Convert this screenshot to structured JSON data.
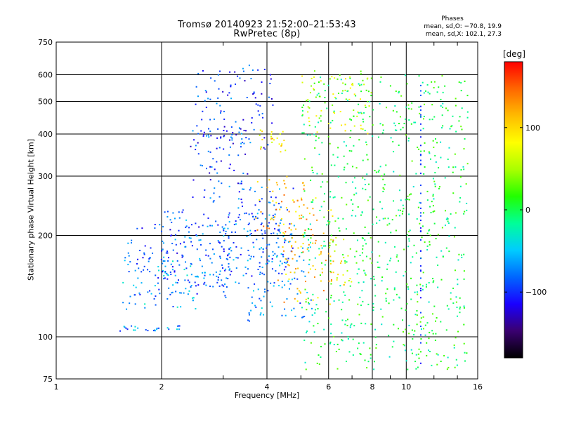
{
  "header": {
    "title": "Tromsø 20140923 21:52:00–21:53:43",
    "subtitle": "RwPretec (8p)"
  },
  "phases": {
    "heading": "Phases",
    "o_line": "mean, sd,O: −70.8, 19.9",
    "x_line": "mean, sd,X: 102.1, 27.3"
  },
  "colorbar": {
    "unit": "[deg]",
    "ticks": [
      {
        "value": 100,
        "label": "100"
      },
      {
        "value": 0,
        "label": "0"
      },
      {
        "value": -100,
        "label": "−100"
      }
    ],
    "range": [
      -180,
      180
    ],
    "colors": [
      "#000000",
      "#3a0070",
      "#1a00ff",
      "#0066ff",
      "#00ccff",
      "#00ff99",
      "#22ff00",
      "#aaff00",
      "#ffff00",
      "#ffbb00",
      "#ff6600",
      "#ff0000"
    ]
  },
  "chart_data": {
    "type": "scatter",
    "title": "Tromsø 20140923 21:52:00–21:53:43",
    "subtitle": "RwPretec (8p)",
    "xlabel": "Frequency [MHz]",
    "ylabel": "Stationary phase Virtual Height [km]",
    "xscale": "log",
    "yscale": "log",
    "xlim": [
      1,
      16
    ],
    "ylim": [
      75,
      750
    ],
    "xticks": [
      {
        "value": 1,
        "label": "1"
      },
      {
        "value": 2,
        "label": "2"
      },
      {
        "value": 4,
        "label": "4"
      },
      {
        "value": 6,
        "label": "6"
      },
      {
        "value": 8,
        "label": "8"
      },
      {
        "value": 10,
        "label": "10"
      },
      {
        "value": 16,
        "label": "16"
      }
    ],
    "yticks": [
      {
        "value": 75,
        "label": "75"
      },
      {
        "value": 100,
        "label": "100"
      },
      {
        "value": 200,
        "label": "200"
      },
      {
        "value": 300,
        "label": "300"
      },
      {
        "value": 400,
        "label": "400"
      },
      {
        "value": 500,
        "label": "500"
      },
      {
        "value": 600,
        "label": "600"
      },
      {
        "value": 750,
        "label": "750"
      }
    ],
    "grid": true,
    "color_by": "phase [deg]",
    "clusters": [
      {
        "desc": "low trace",
        "f": [
          1.5,
          2.3
        ],
        "h": [
          104,
          108
        ],
        "phase": -70
      },
      {
        "desc": "lower trace",
        "f": [
          1.55,
          2.6
        ],
        "h": [
          120,
          175
        ],
        "phase": -60
      },
      {
        "desc": "mid cloud",
        "f": [
          1.6,
          3.2
        ],
        "h": [
          130,
          220
        ],
        "phase": -90
      },
      {
        "desc": "curved traces",
        "f": [
          2.0,
          4.6
        ],
        "h": [
          140,
          240
        ],
        "phase": -80
      },
      {
        "desc": "upper cloud",
        "f": [
          2.4,
          3.6
        ],
        "h": [
          250,
          420
        ],
        "phase": -95
      },
      {
        "desc": "upper cloud 2",
        "f": [
          2.5,
          4.2
        ],
        "h": [
          360,
          640
        ],
        "phase": -95
      },
      {
        "desc": "mid-freq high",
        "f": [
          3.0,
          4.8
        ],
        "h": [
          150,
          280
        ],
        "phase": -85
      },
      {
        "desc": "mixed",
        "f": [
          3.5,
          5.4
        ],
        "h": [
          110,
          200
        ],
        "phase": -70
      },
      {
        "desc": "x-trace warm",
        "f": [
          3.7,
          5.2
        ],
        "h": [
          200,
          300
        ],
        "phase": 120
      },
      {
        "desc": "x-trace 2",
        "f": [
          4.3,
          6.2
        ],
        "h": [
          125,
          260
        ],
        "phase": 110
      },
      {
        "desc": "x-yellow",
        "f": [
          3.8,
          4.6
        ],
        "h": [
          350,
          420
        ],
        "phase": 90
      },
      {
        "desc": "sparse high",
        "f": [
          5.0,
          8.0
        ],
        "h": [
          400,
          620
        ],
        "phase": 60
      },
      {
        "desc": "sparse",
        "f": [
          6.0,
          7.0
        ],
        "h": [
          140,
          200
        ],
        "phase": 80
      },
      {
        "desc": "sparse wide",
        "f": [
          5.0,
          15.0
        ],
        "h": [
          80,
          600
        ],
        "phase": 0
      }
    ],
    "vertical_lines": [
      {
        "f": 11.0,
        "h": [
          82,
          590
        ],
        "phase": -100
      }
    ]
  }
}
